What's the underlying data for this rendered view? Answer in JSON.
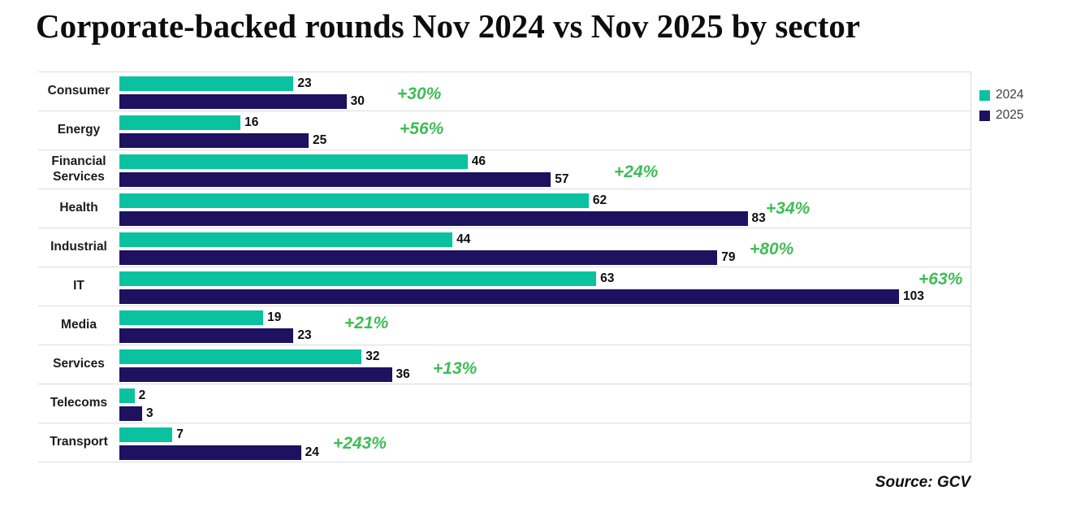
{
  "title": "Corporate-backed rounds Nov 2024 vs Nov 2025 by sector",
  "source": "Source: GCV",
  "legend": {
    "items": [
      {
        "label": "2024",
        "color": "#0bc2a0"
      },
      {
        "label": "2025",
        "color": "#1d1160"
      }
    ]
  },
  "colors": {
    "bar_2024": "#0bc2a0",
    "bar_2025": "#1d1160",
    "pct_change_text": "#3ebd55",
    "row_separator": "#dcdcdc",
    "title_text": "#0d0d0d"
  },
  "chart_data": {
    "type": "bar",
    "orientation": "horizontal",
    "title": "Corporate-backed rounds Nov 2024 vs Nov 2025 by sector",
    "categories": [
      "Consumer",
      "Energy",
      "Financial Services",
      "Health",
      "Industrial",
      "IT",
      "Media",
      "Services",
      "Telecoms",
      "Transport"
    ],
    "series": [
      {
        "name": "2024",
        "color": "#0bc2a0",
        "values": [
          23,
          16,
          46,
          62,
          44,
          63,
          19,
          32,
          2,
          7
        ]
      },
      {
        "name": "2025",
        "color": "#1d1160",
        "values": [
          30,
          25,
          57,
          83,
          79,
          103,
          23,
          36,
          3,
          24
        ]
      }
    ],
    "pct_change": [
      "+30%",
      "+56%",
      "+24%",
      "+34%",
      "+80%",
      "+63%",
      "+21%",
      "+13%",
      null,
      "+243%"
    ],
    "xlim": [
      0,
      112
    ],
    "grid": "horizontal-row-separators",
    "legend_position": "top-right",
    "value_labels": "end-of-bar",
    "source": "Source: GCV"
  }
}
